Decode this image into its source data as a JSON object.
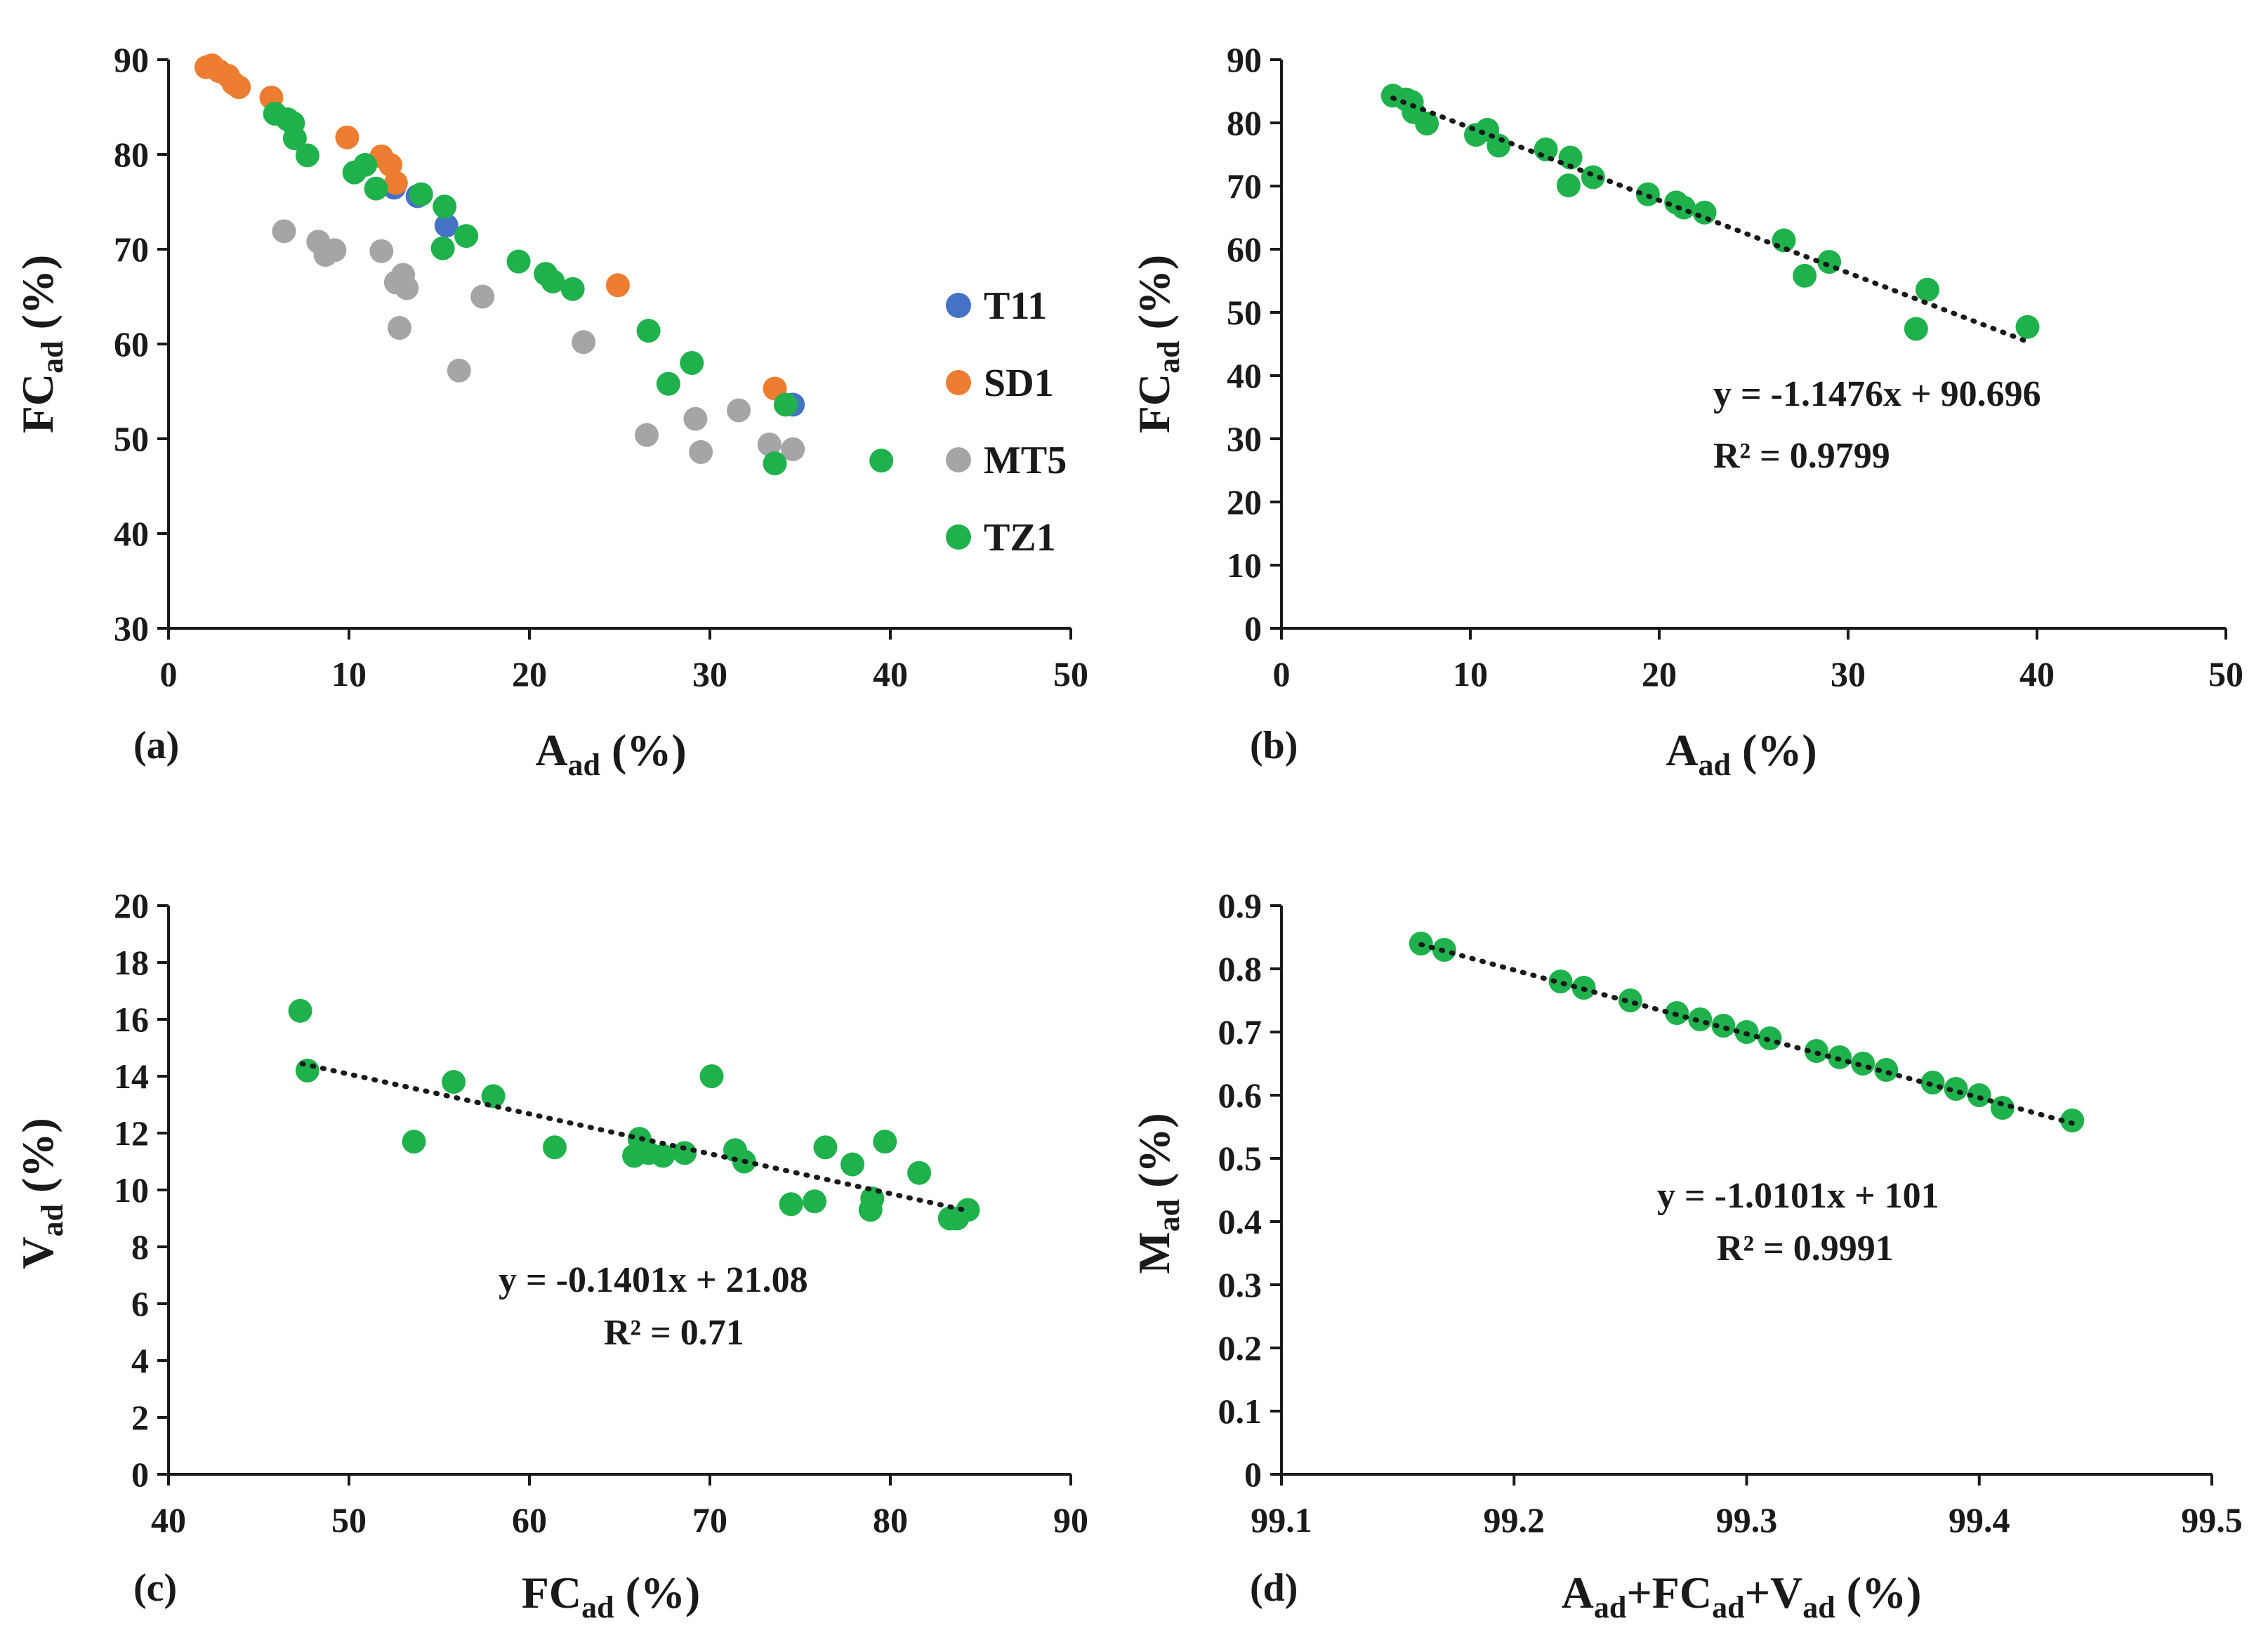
{
  "colors": {
    "T11": "#4472c4",
    "SD1": "#ed7d31",
    "MT5": "#a5a5a5",
    "TZ1": "#1fb14c",
    "axis": "#1a1a1a",
    "trend": "#1a1a1a"
  },
  "chart_data": [
    {
      "id": "a",
      "type": "scatter",
      "panel_label": "(a)",
      "xlabel": {
        "main": "A",
        "sub": "ad",
        "tail": " (%)"
      },
      "ylabel": {
        "main": "FC",
        "sub": "ad",
        "tail": " (%)"
      },
      "xlim": [
        0,
        50
      ],
      "ylim": [
        30,
        90
      ],
      "xticks": [
        0,
        10,
        20,
        30,
        40,
        50
      ],
      "yticks": [
        30,
        40,
        50,
        60,
        70,
        80,
        90
      ],
      "legend_position": "right",
      "series": [
        {
          "name": "T11",
          "color_key": "T11",
          "points": [
            [
              12.5,
              76.5
            ],
            [
              13.8,
              75.6
            ],
            [
              15.4,
              72.5
            ],
            [
              34.6,
              53.6
            ]
          ]
        },
        {
          "name": "SD1",
          "color_key": "SD1",
          "points": [
            [
              2.1,
              89.2
            ],
            [
              2.4,
              89.4
            ],
            [
              2.8,
              88.8
            ],
            [
              3.3,
              88.3
            ],
            [
              3.6,
              87.5
            ],
            [
              3.9,
              87.1
            ],
            [
              5.7,
              86.0
            ],
            [
              9.9,
              81.8
            ],
            [
              11.8,
              79.8
            ],
            [
              12.3,
              78.9
            ],
            [
              12.6,
              77.0
            ],
            [
              24.9,
              66.2
            ],
            [
              33.6,
              55.3
            ]
          ]
        },
        {
          "name": "MT5",
          "color_key": "MT5",
          "points": [
            [
              6.4,
              71.9
            ],
            [
              8.3,
              70.8
            ],
            [
              8.7,
              69.4
            ],
            [
              9.2,
              69.9
            ],
            [
              11.8,
              69.8
            ],
            [
              12.6,
              66.5
            ],
            [
              13.0,
              67.3
            ],
            [
              13.2,
              65.9
            ],
            [
              12.8,
              61.7
            ],
            [
              16.1,
              57.2
            ],
            [
              17.4,
              65.0
            ],
            [
              23.0,
              60.2
            ],
            [
              26.5,
              50.4
            ],
            [
              29.2,
              52.1
            ],
            [
              29.5,
              48.6
            ],
            [
              31.6,
              53.0
            ],
            [
              33.3,
              49.4
            ],
            [
              34.6,
              48.9
            ]
          ]
        },
        {
          "name": "TZ1",
          "color_key": "TZ1",
          "points": [
            [
              5.9,
              84.3
            ],
            [
              6.6,
              83.7
            ],
            [
              6.9,
              83.3
            ],
            [
              7.0,
              81.7
            ],
            [
              7.7,
              79.9
            ],
            [
              10.3,
              78.1
            ],
            [
              10.9,
              78.9
            ],
            [
              11.5,
              76.4
            ],
            [
              14.0,
              75.8
            ],
            [
              15.3,
              74.5
            ],
            [
              15.2,
              70.1
            ],
            [
              16.5,
              71.4
            ],
            [
              19.4,
              68.7
            ],
            [
              20.9,
              67.4
            ],
            [
              21.3,
              66.6
            ],
            [
              22.4,
              65.8
            ],
            [
              26.6,
              61.4
            ],
            [
              27.7,
              55.8
            ],
            [
              29.0,
              58.0
            ],
            [
              33.6,
              47.4
            ],
            [
              34.2,
              53.6
            ],
            [
              39.5,
              47.7
            ]
          ]
        }
      ]
    },
    {
      "id": "b",
      "type": "scatter",
      "panel_label": "(b)",
      "xlabel": {
        "main": "A",
        "sub": "ad",
        "tail": " (%)"
      },
      "ylabel": {
        "main": "FC",
        "sub": "ad",
        "tail": " (%)"
      },
      "xlim": [
        0,
        50
      ],
      "ylim": [
        0,
        90
      ],
      "xticks": [
        0,
        10,
        20,
        30,
        40,
        50
      ],
      "yticks": [
        0,
        10,
        20,
        30,
        40,
        50,
        60,
        70,
        80,
        90
      ],
      "equation": "y = -1.1476x + 90.696",
      "r2": "R² = 0.9799",
      "trendline": {
        "slope": -1.1476,
        "intercept": 90.696,
        "x_range": [
          5.9,
          39.5
        ]
      },
      "series": [
        {
          "name": "TZ1",
          "color_key": "TZ1",
          "points": [
            [
              5.9,
              84.3
            ],
            [
              6.6,
              83.7
            ],
            [
              6.9,
              83.3
            ],
            [
              7.0,
              81.7
            ],
            [
              7.7,
              79.9
            ],
            [
              10.3,
              78.1
            ],
            [
              10.9,
              78.9
            ],
            [
              11.5,
              76.4
            ],
            [
              14.0,
              75.8
            ],
            [
              15.3,
              74.5
            ],
            [
              15.2,
              70.1
            ],
            [
              16.5,
              71.4
            ],
            [
              19.4,
              68.7
            ],
            [
              20.9,
              67.4
            ],
            [
              21.3,
              66.6
            ],
            [
              22.4,
              65.8
            ],
            [
              26.6,
              61.4
            ],
            [
              27.7,
              55.8
            ],
            [
              29.0,
              58.0
            ],
            [
              33.6,
              47.4
            ],
            [
              34.2,
              53.6
            ],
            [
              39.5,
              47.7
            ]
          ]
        }
      ]
    },
    {
      "id": "c",
      "type": "scatter",
      "panel_label": "(c)",
      "xlabel": {
        "main": "FC",
        "sub": "ad",
        "tail": " (%)"
      },
      "ylabel": {
        "main": "V",
        "sub": "ad",
        "tail": " (%)"
      },
      "xlim": [
        40,
        90
      ],
      "ylim": [
        0,
        20
      ],
      "xticks": [
        40,
        50,
        60,
        70,
        80,
        90
      ],
      "yticks": [
        0,
        2,
        4,
        6,
        8,
        10,
        12,
        14,
        16,
        18,
        20
      ],
      "equation": "y = -0.1401x + 21.08",
      "r2": "R² = 0.71",
      "trendline": {
        "slope": -0.1401,
        "intercept": 21.08,
        "x_range": [
          47.4,
          84.3
        ]
      },
      "series": [
        {
          "name": "TZ1",
          "color_key": "TZ1",
          "points": [
            [
              47.3,
              16.3
            ],
            [
              47.7,
              14.2
            ],
            [
              53.6,
              11.7
            ],
            [
              55.8,
              13.8
            ],
            [
              58.0,
              13.3
            ],
            [
              61.4,
              11.5
            ],
            [
              65.8,
              11.2
            ],
            [
              66.1,
              11.8
            ],
            [
              66.6,
              11.3
            ],
            [
              67.4,
              11.2
            ],
            [
              68.6,
              11.3
            ],
            [
              70.1,
              14.0
            ],
            [
              71.4,
              11.4
            ],
            [
              71.9,
              11.0
            ],
            [
              74.5,
              9.5
            ],
            [
              75.8,
              9.6
            ],
            [
              76.4,
              11.5
            ],
            [
              77.9,
              10.9
            ],
            [
              78.9,
              9.3
            ],
            [
              79.0,
              9.7
            ],
            [
              79.7,
              11.7
            ],
            [
              81.6,
              10.6
            ],
            [
              83.3,
              9.0
            ],
            [
              83.7,
              9.0
            ],
            [
              84.3,
              9.3
            ]
          ]
        }
      ]
    },
    {
      "id": "d",
      "type": "scatter",
      "panel_label": "(d)",
      "xlabel_segments": [
        {
          "t": "A"
        },
        {
          "t": "ad",
          "sub": true
        },
        {
          "t": "+FC"
        },
        {
          "t": "ad",
          "sub": true
        },
        {
          "t": "+V"
        },
        {
          "t": "ad",
          "sub": true
        },
        {
          "t": " (%)"
        }
      ],
      "ylabel": {
        "main": "M",
        "sub": "ad",
        "tail": " (%)"
      },
      "xlim": [
        99.1,
        99.5
      ],
      "ylim": [
        0,
        0.9
      ],
      "xticks": [
        99.1,
        99.2,
        99.3,
        99.4,
        99.5
      ],
      "yticks": [
        0,
        0.1,
        0.2,
        0.3,
        0.4,
        0.5,
        0.6,
        0.7,
        0.8,
        0.9
      ],
      "equation": "y = -1.0101x + 101",
      "r2": "R² = 0.9991",
      "trendline": {
        "slope": -1.0101,
        "intercept": 101,
        "x_range": [
          99.16,
          99.44
        ]
      },
      "series": [
        {
          "name": "TZ1",
          "color_key": "TZ1",
          "points": [
            [
              99.16,
              0.84
            ],
            [
              99.17,
              0.83
            ],
            [
              99.22,
              0.78
            ],
            [
              99.23,
              0.77
            ],
            [
              99.25,
              0.75
            ],
            [
              99.27,
              0.73
            ],
            [
              99.28,
              0.72
            ],
            [
              99.29,
              0.71
            ],
            [
              99.3,
              0.7
            ],
            [
              99.31,
              0.69
            ],
            [
              99.33,
              0.67
            ],
            [
              99.34,
              0.66
            ],
            [
              99.35,
              0.65
            ],
            [
              99.36,
              0.64
            ],
            [
              99.38,
              0.62
            ],
            [
              99.39,
              0.61
            ],
            [
              99.4,
              0.6
            ],
            [
              99.41,
              0.58
            ],
            [
              99.44,
              0.56
            ]
          ]
        }
      ]
    }
  ]
}
